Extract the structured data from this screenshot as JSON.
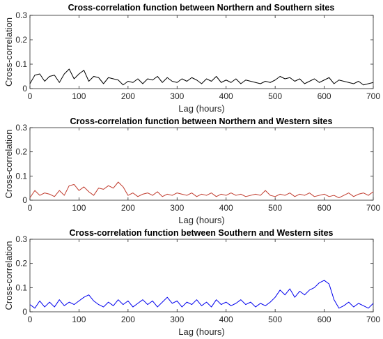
{
  "colors": {
    "axis": "#262626",
    "background": "#ffffff"
  },
  "chart_data": [
    {
      "type": "line",
      "title": "Cross-correlation function between Northern and Southern sites",
      "xlabel": "Lag (hours)",
      "ylabel": "Cross-correlation",
      "xlim": [
        0,
        700
      ],
      "ylim": [
        0,
        0.3
      ],
      "xticks": [
        "0",
        "100",
        "200",
        "300",
        "400",
        "500",
        "600",
        "700"
      ],
      "yticks": [
        "0",
        "0.1",
        "0.2",
        "0.3"
      ],
      "grid": false,
      "series": [
        {
          "color": "#000000",
          "x": [
            0,
            10,
            20,
            30,
            40,
            50,
            60,
            70,
            80,
            90,
            100,
            110,
            120,
            130,
            140,
            150,
            160,
            170,
            180,
            190,
            200,
            210,
            220,
            230,
            240,
            250,
            260,
            270,
            280,
            290,
            300,
            310,
            320,
            330,
            340,
            350,
            360,
            370,
            380,
            390,
            400,
            410,
            420,
            430,
            440,
            450,
            460,
            470,
            480,
            490,
            500,
            510,
            520,
            530,
            540,
            550,
            560,
            570,
            580,
            590,
            600,
            610,
            620,
            630,
            640,
            650,
            660,
            670,
            680,
            690,
            700
          ],
          "y": [
            0.02,
            0.055,
            0.06,
            0.03,
            0.05,
            0.055,
            0.025,
            0.06,
            0.08,
            0.04,
            0.06,
            0.075,
            0.03,
            0.05,
            0.045,
            0.02,
            0.045,
            0.04,
            0.035,
            0.015,
            0.03,
            0.025,
            0.04,
            0.02,
            0.04,
            0.035,
            0.05,
            0.025,
            0.045,
            0.03,
            0.025,
            0.04,
            0.03,
            0.045,
            0.035,
            0.02,
            0.04,
            0.03,
            0.05,
            0.025,
            0.035,
            0.025,
            0.04,
            0.02,
            0.035,
            0.03,
            0.025,
            0.02,
            0.03,
            0.025,
            0.035,
            0.05,
            0.04,
            0.045,
            0.03,
            0.04,
            0.02,
            0.03,
            0.04,
            0.025,
            0.035,
            0.045,
            0.02,
            0.035,
            0.03,
            0.025,
            0.02,
            0.03,
            0.015,
            0.02,
            0.025
          ]
        }
      ]
    },
    {
      "type": "line",
      "title": "Cross-correlation function between Northern and Western sites",
      "xlabel": "Lag (hours)",
      "ylabel": "Cross-correlation",
      "xlim": [
        0,
        700
      ],
      "ylim": [
        0,
        0.3
      ],
      "xticks": [
        "0",
        "100",
        "200",
        "300",
        "400",
        "500",
        "600",
        "700"
      ],
      "yticks": [
        "0",
        "0.1",
        "0.2",
        "0.3"
      ],
      "grid": false,
      "series": [
        {
          "color": "#c0392b",
          "x": [
            0,
            10,
            20,
            30,
            40,
            50,
            60,
            70,
            80,
            90,
            100,
            110,
            120,
            130,
            140,
            150,
            160,
            170,
            180,
            190,
            200,
            210,
            220,
            230,
            240,
            250,
            260,
            270,
            280,
            290,
            300,
            310,
            320,
            330,
            340,
            350,
            360,
            370,
            380,
            390,
            400,
            410,
            420,
            430,
            440,
            450,
            460,
            470,
            480,
            490,
            500,
            510,
            520,
            530,
            540,
            550,
            560,
            570,
            580,
            590,
            600,
            610,
            620,
            630,
            640,
            650,
            660,
            670,
            680,
            690,
            700
          ],
          "y": [
            0.01,
            0.04,
            0.02,
            0.03,
            0.025,
            0.015,
            0.04,
            0.02,
            0.06,
            0.065,
            0.04,
            0.055,
            0.035,
            0.02,
            0.05,
            0.045,
            0.06,
            0.05,
            0.075,
            0.055,
            0.02,
            0.03,
            0.015,
            0.025,
            0.03,
            0.02,
            0.035,
            0.015,
            0.025,
            0.02,
            0.03,
            0.025,
            0.02,
            0.03,
            0.015,
            0.025,
            0.02,
            0.03,
            0.015,
            0.025,
            0.02,
            0.03,
            0.02,
            0.025,
            0.015,
            0.02,
            0.025,
            0.02,
            0.04,
            0.02,
            0.015,
            0.025,
            0.02,
            0.03,
            0.015,
            0.025,
            0.02,
            0.03,
            0.015,
            0.02,
            0.025,
            0.015,
            0.02,
            0.01,
            0.02,
            0.03,
            0.015,
            0.025,
            0.03,
            0.02,
            0.035
          ]
        }
      ]
    },
    {
      "type": "line",
      "title": "Cross-correlation function between Southern and Western sites",
      "xlabel": "Lag (hours)",
      "ylabel": "Cross-correlation",
      "xlim": [
        0,
        700
      ],
      "ylim": [
        0,
        0.3
      ],
      "xticks": [
        "0",
        "100",
        "200",
        "300",
        "400",
        "500",
        "600",
        "700"
      ],
      "yticks": [
        "0",
        "0.1",
        "0.2",
        "0.3"
      ],
      "grid": false,
      "series": [
        {
          "color": "#0000ee",
          "x": [
            0,
            10,
            20,
            30,
            40,
            50,
            60,
            70,
            80,
            90,
            100,
            110,
            120,
            130,
            140,
            150,
            160,
            170,
            180,
            190,
            200,
            210,
            220,
            230,
            240,
            250,
            260,
            270,
            280,
            290,
            300,
            310,
            320,
            330,
            340,
            350,
            360,
            370,
            380,
            390,
            400,
            410,
            420,
            430,
            440,
            450,
            460,
            470,
            480,
            490,
            500,
            510,
            520,
            530,
            540,
            550,
            560,
            570,
            580,
            590,
            600,
            610,
            620,
            630,
            640,
            650,
            660,
            670,
            680,
            690,
            700
          ],
          "y": [
            0.03,
            0.015,
            0.045,
            0.02,
            0.04,
            0.02,
            0.05,
            0.025,
            0.04,
            0.03,
            0.045,
            0.06,
            0.07,
            0.045,
            0.03,
            0.02,
            0.04,
            0.025,
            0.05,
            0.03,
            0.045,
            0.02,
            0.035,
            0.05,
            0.03,
            0.045,
            0.02,
            0.04,
            0.06,
            0.035,
            0.045,
            0.02,
            0.04,
            0.03,
            0.05,
            0.025,
            0.04,
            0.02,
            0.05,
            0.03,
            0.04,
            0.025,
            0.035,
            0.05,
            0.03,
            0.04,
            0.02,
            0.035,
            0.025,
            0.04,
            0.06,
            0.09,
            0.07,
            0.095,
            0.06,
            0.085,
            0.07,
            0.09,
            0.1,
            0.12,
            0.13,
            0.115,
            0.05,
            0.015,
            0.025,
            0.04,
            0.02,
            0.035,
            0.025,
            0.015,
            0.035
          ]
        }
      ]
    }
  ]
}
